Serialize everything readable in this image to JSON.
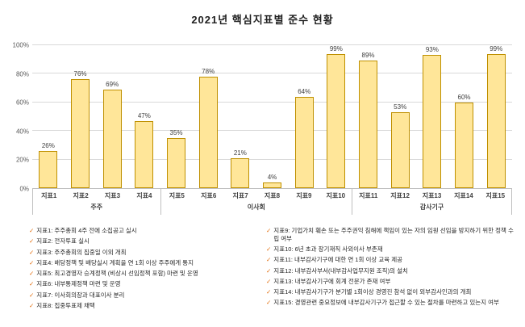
{
  "title": "2021년 핵심지표별 준수 현황",
  "chart_data": {
    "type": "bar",
    "title": "2021년 핵심지표별 준수 현황",
    "xlabel": "",
    "ylabel": "",
    "ylim": [
      0,
      100
    ],
    "yticks": [
      "0%",
      "20%",
      "40%",
      "60%",
      "80%",
      "100%"
    ],
    "grid": true,
    "legend": "none",
    "value_suffix": "%",
    "bar_color": "#FFE699",
    "bar_border_color": "#BF9000",
    "groups": [
      {
        "label": "주주",
        "categories": [
          "지표1",
          "지표2",
          "지표3",
          "지표4"
        ],
        "values": [
          26,
          76,
          69,
          47
        ]
      },
      {
        "label": "이사회",
        "categories": [
          "지표5",
          "지표6",
          "지표7",
          "지표8",
          "지표9",
          "지표10"
        ],
        "values": [
          35,
          78,
          21,
          4,
          64,
          99
        ]
      },
      {
        "label": "감사기구",
        "categories": [
          "지표11",
          "지표12",
          "지표13",
          "지표14",
          "지표15"
        ],
        "values": [
          89,
          53,
          93,
          60,
          99
        ]
      }
    ]
  },
  "notes": {
    "marker": "✓",
    "marker_color": "#E36C0A",
    "left": [
      "지표1: 주주총회 4주 전에 소집공고 실시",
      "지표2: 전자투표 실시",
      "지표3: 주주총회의 집중일 이외 개최",
      "지표4: 배당정책 및 배당실시 계획을 연 1회 이상 주주에게 통지",
      "지표5: 최고경영자 승계정책 (비상시 선임정책 포함) 마련 및 운영",
      "지표6: 내부통제정책 마련 및 운영",
      "지표7: 이사회의장과 대표이사 분리",
      "지표8: 집중투표제 채택"
    ],
    "right": [
      "지표9: 기업가치 훼손 또는 주주권익 침해에 책임이 있는 자의 임원 선임을 방지하기 위한 정책 수립 여부",
      "지표10: 6년 초과 장기재직 사외이사 부존재",
      "지표11: 내부감사기구에 대한 연 1회 이상 교육 제공",
      "지표12: 내부감사부서(내부감사업무지원 조직)의 설치",
      "지표13: 내부감사기구에 회계 전문가 존재 여부",
      "지표14: 내부감사기구가 분기별 1회이상 경영진 참석 없이 외부감사인과의 개최",
      "지표15: 경영관련 중요정보에 내부감사기구가 접근할 수 있는 절차를 마련하고 있는지 여부"
    ]
  }
}
